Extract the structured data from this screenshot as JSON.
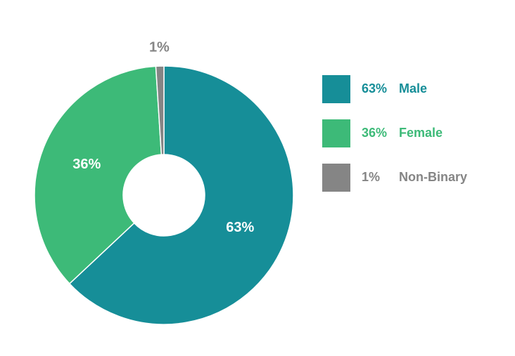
{
  "chart_data": {
    "type": "pie",
    "categories": [
      "Male",
      "Female",
      "Non-Binary"
    ],
    "values": [
      63,
      36,
      1
    ],
    "value_labels": [
      "63%",
      "36%",
      "1%"
    ],
    "colors": [
      "#168e98",
      "#3dba78",
      "#858585"
    ]
  }
}
